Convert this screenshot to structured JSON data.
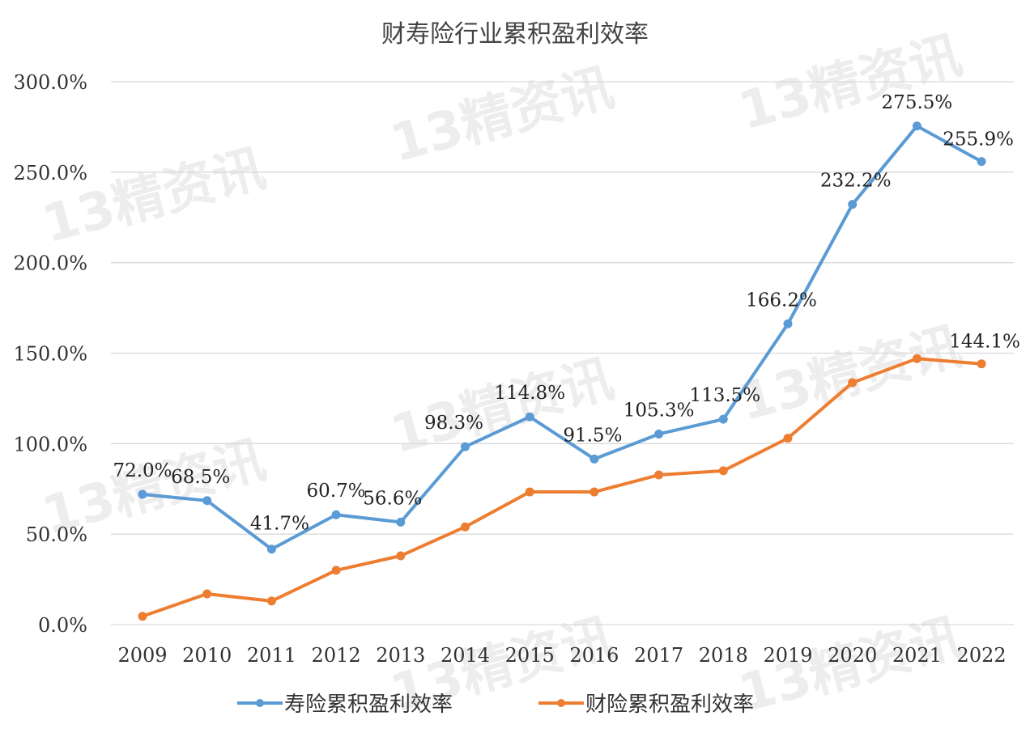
{
  "watermark": "13精资讯",
  "chart_data": {
    "type": "line",
    "title": "财寿险行业累积盈利效率",
    "categories": [
      "2009",
      "2010",
      "2011",
      "2012",
      "2013",
      "2014",
      "2015",
      "2016",
      "2017",
      "2018",
      "2019",
      "2020",
      "2021",
      "2022"
    ],
    "ylim": [
      0,
      300
    ],
    "yticks": [
      "0.0%",
      "50.0%",
      "100.0%",
      "150.0%",
      "200.0%",
      "250.0%",
      "300.0%"
    ],
    "grid": true,
    "legend_position": "bottom",
    "series": [
      {
        "name": "寿险累积盈利效率",
        "color": "#5B9BD5",
        "values": [
          72.0,
          68.5,
          41.7,
          60.7,
          56.6,
          98.3,
          114.8,
          91.5,
          105.3,
          113.5,
          166.2,
          232.2,
          275.5,
          255.9
        ],
        "labels": [
          "72.0%",
          "68.5%",
          "41.7%",
          "60.7%",
          "56.6%",
          "98.3%",
          "114.8%",
          "91.5%",
          "105.3%",
          "113.5%",
          "166.2%",
          "232.2%",
          "275.5%",
          "255.9%"
        ]
      },
      {
        "name": "财险累积盈利效率",
        "color": "#ED7D31",
        "values": [
          4.6,
          17.0,
          13.0,
          30.0,
          38.0,
          54.0,
          73.3,
          73.3,
          82.7,
          85.0,
          103.0,
          133.7,
          147.0,
          144.1
        ],
        "labels": [
          "",
          "",
          "",
          "",
          "",
          "",
          "",
          "",
          "",
          "",
          "",
          "",
          "",
          "144.1%"
        ]
      }
    ]
  }
}
